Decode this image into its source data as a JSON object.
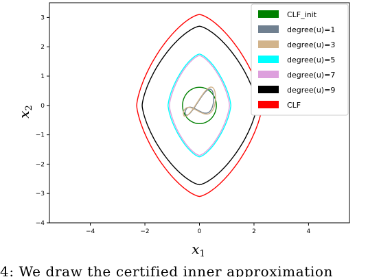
{
  "chart_data": {
    "type": "line",
    "xlabel": "x",
    "xlabel_sub": "1",
    "ylabel": "x",
    "ylabel_sub": "2",
    "xlim": [
      -5.5,
      5.5
    ],
    "ylim": [
      -4,
      3.5
    ],
    "xticks": [
      -4,
      -2,
      0,
      2,
      4
    ],
    "xtick_labels": [
      "−4",
      "−2",
      "0",
      "2",
      "4"
    ],
    "yticks": [
      -4,
      -3,
      -2,
      -1,
      0,
      1,
      2,
      3
    ],
    "ytick_labels": [
      "−4",
      "−3",
      "−2",
      "−1",
      "0",
      "1",
      "2",
      "3"
    ],
    "grid": false,
    "legend_position": "top-right",
    "series": [
      {
        "name": "CLF_init",
        "color": "#008000",
        "shape": "circle",
        "radius": 0.62
      },
      {
        "name": "degree(u)=1",
        "color": "#708090",
        "shape": "s-curve",
        "scale": 0.55
      },
      {
        "name": "degree(u)=3",
        "color": "#d2b48c",
        "shape": "s-curve",
        "scale": 0.62
      },
      {
        "name": "degree(u)=5",
        "color": "#00ffff",
        "shape": "rounded-diamond",
        "half_width": 1.15,
        "half_height": 1.75
      },
      {
        "name": "degree(u)=7",
        "color": "#dda0dd",
        "shape": "rounded-diamond",
        "half_width": 1.1,
        "half_height": 1.7
      },
      {
        "name": "degree(u)=9",
        "color": "#000000",
        "shape": "rounded-diamond",
        "half_width": 2.1,
        "half_height": 2.7
      },
      {
        "name": "CLF",
        "color": "#ff0000",
        "shape": "rounded-diamond",
        "half_width": 2.3,
        "half_height": 3.1
      }
    ]
  },
  "caption": {
    "text": "4: We draw the certified inner approximation"
  }
}
